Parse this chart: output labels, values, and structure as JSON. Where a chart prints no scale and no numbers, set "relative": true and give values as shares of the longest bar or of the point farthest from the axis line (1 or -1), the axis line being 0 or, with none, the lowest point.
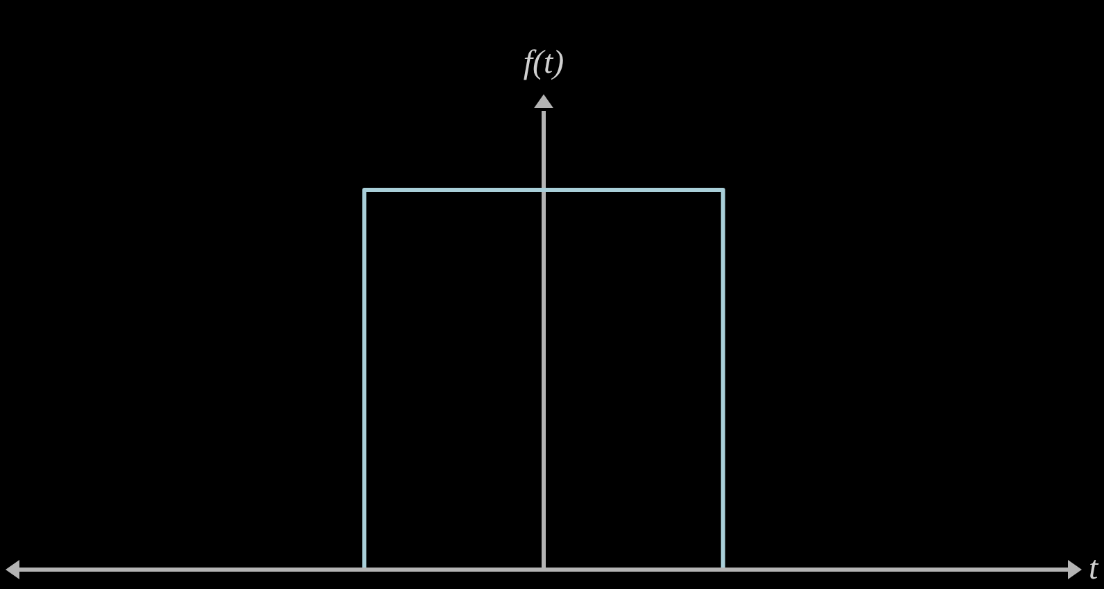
{
  "chart_data": {
    "type": "step",
    "relative": true,
    "xlabel": "t",
    "ylabel": "f(t)",
    "tick_labels": false,
    "categories": [
      null,
      null,
      null
    ],
    "values": [
      0,
      1,
      0
    ],
    "color": "#a9cfd9"
  }
}
